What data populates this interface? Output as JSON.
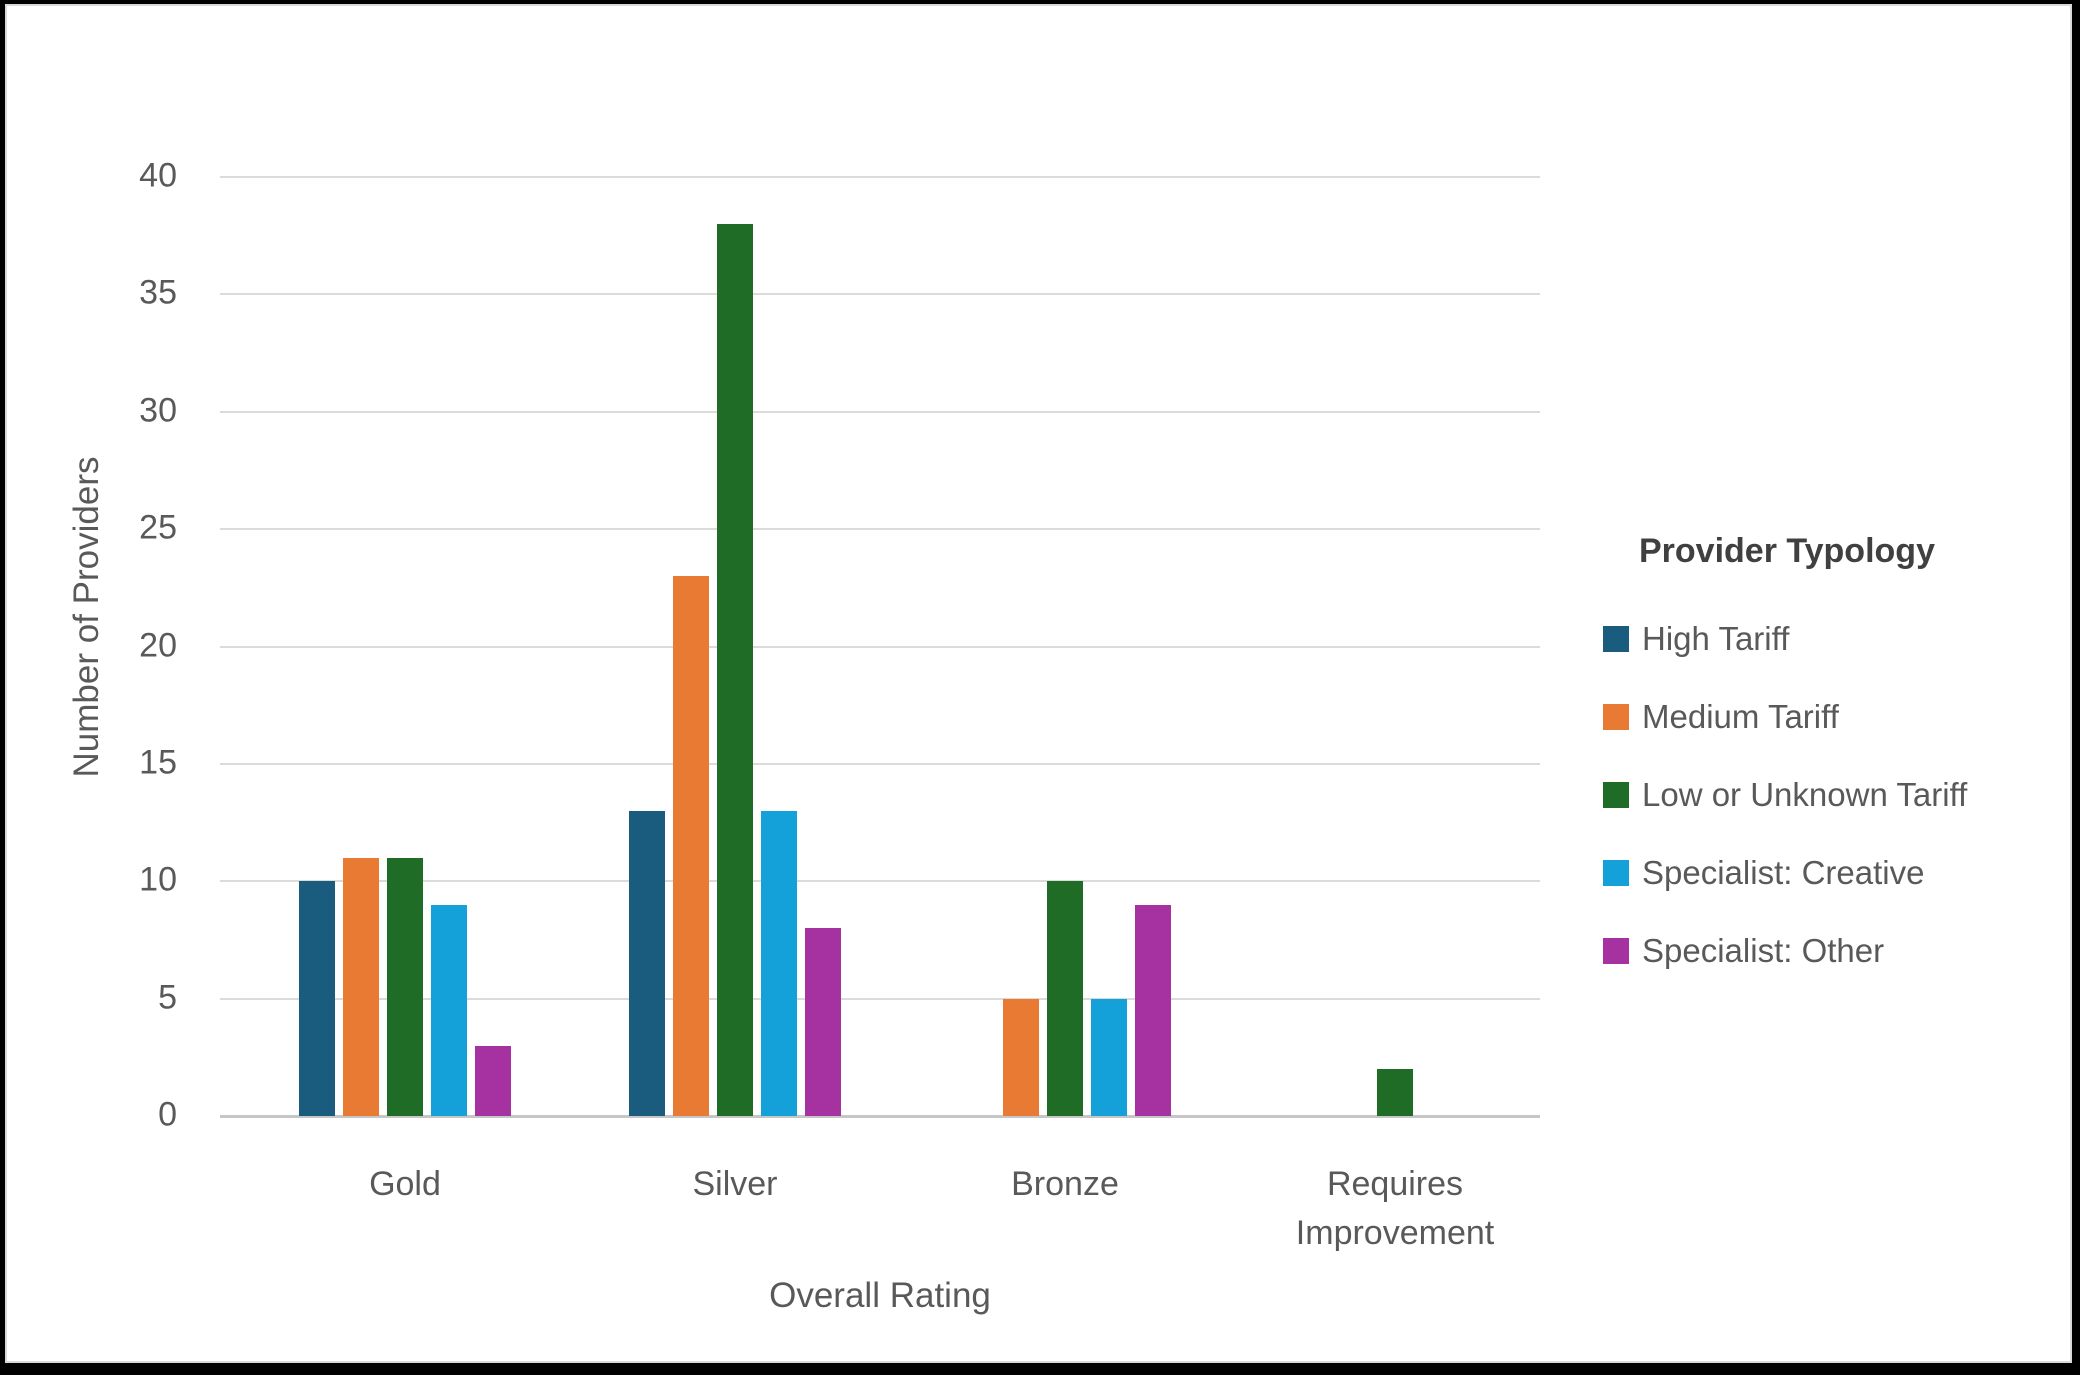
{
  "frame": {
    "background": "#ffffff",
    "border_color": "#000000",
    "inner_ring_color": "#d9d9d9"
  },
  "styles": {
    "text_color": "#595959",
    "legend_title_color": "#404040",
    "gridline_color": "#dbdbdb",
    "zero_line_color": "#c6c6c6"
  },
  "chart_data": {
    "type": "bar",
    "title": "",
    "categories": [
      "Gold",
      "Silver",
      "Bronze",
      "Requires Improvement"
    ],
    "series": [
      {
        "name": "High Tariff",
        "color": "#1A5C7E",
        "values": [
          10,
          13,
          0,
          0
        ]
      },
      {
        "name": "Medium Tariff",
        "color": "#E87A34",
        "values": [
          11,
          23,
          5,
          0
        ]
      },
      {
        "name": "Low or Unknown Tariff",
        "color": "#1E6C26",
        "values": [
          11,
          38,
          10,
          2
        ]
      },
      {
        "name": "Specialist: Creative",
        "color": "#14A0D9",
        "values": [
          9,
          13,
          5,
          0
        ]
      },
      {
        "name": "Specialist: Other",
        "color": "#A532A0",
        "values": [
          3,
          8,
          9,
          0
        ]
      }
    ],
    "xlabel": "Overall Rating",
    "ylabel": "Number of Providers",
    "ylim": [
      0,
      40
    ],
    "yticks": [
      0,
      5,
      10,
      15,
      20,
      25,
      30,
      35,
      40
    ],
    "grid": true,
    "legend_title": "Provider Typology",
    "legend_position": "right"
  }
}
